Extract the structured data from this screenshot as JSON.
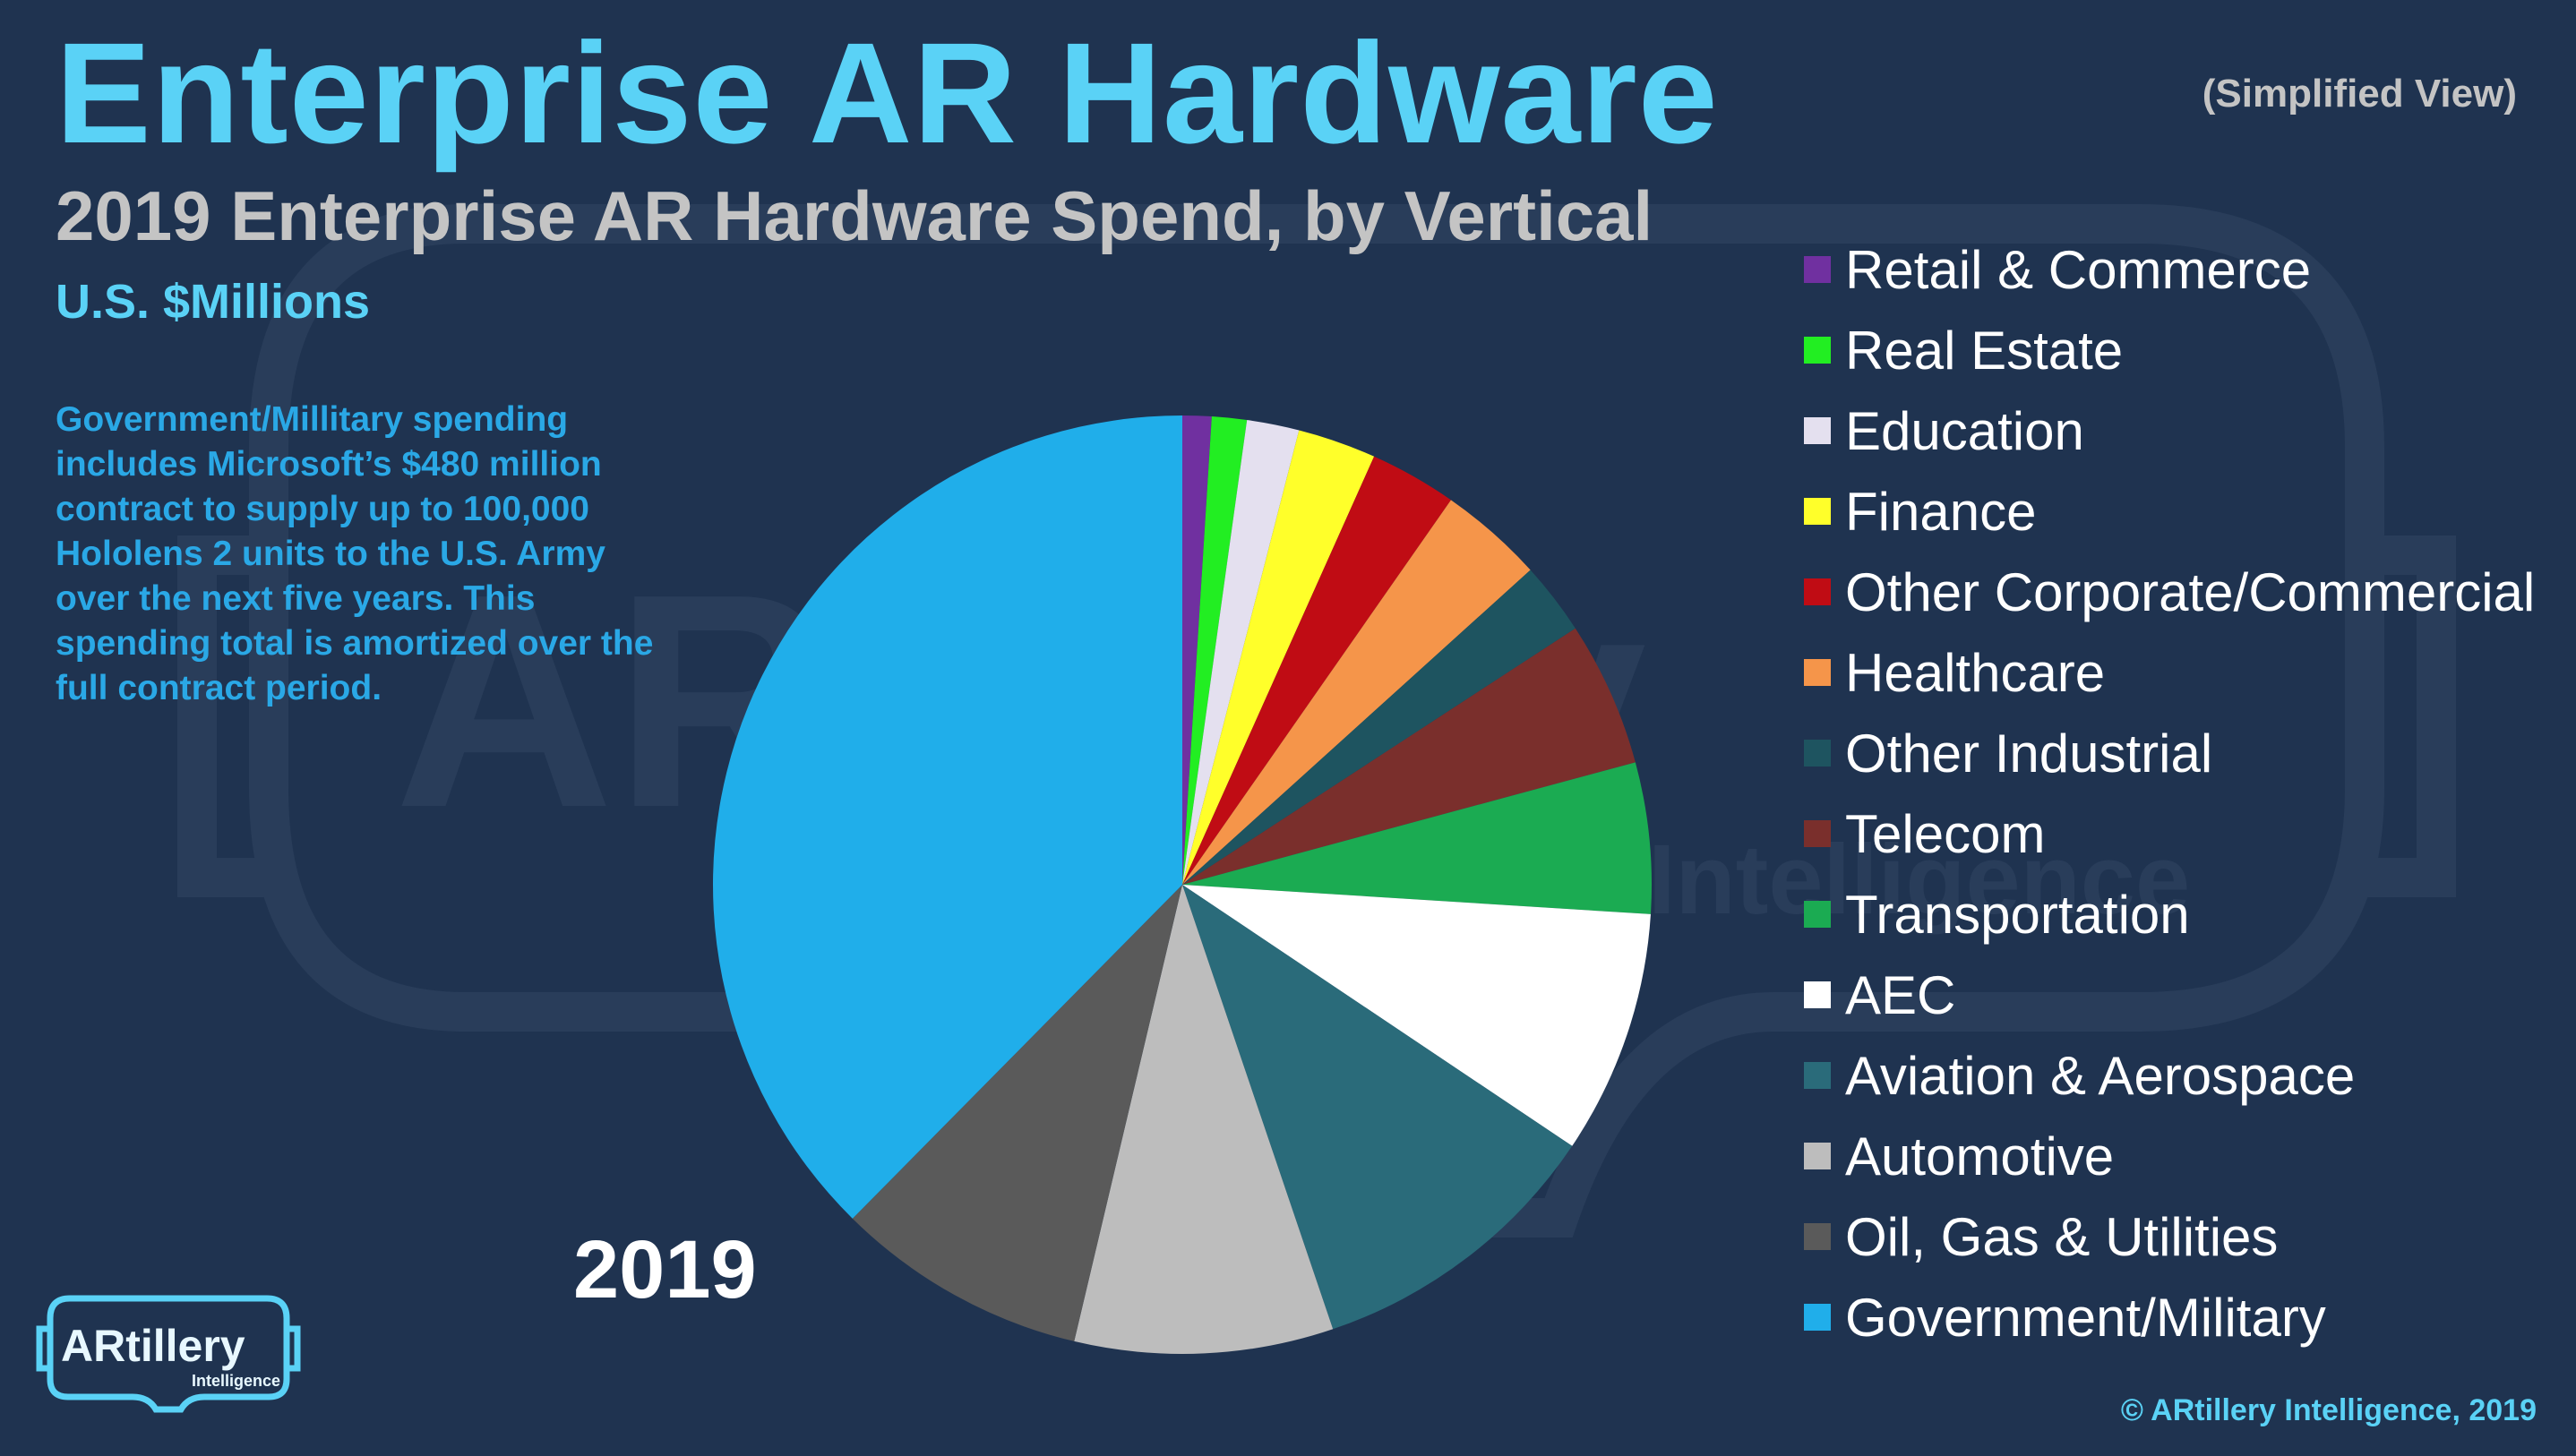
{
  "header": {
    "title": "Enterprise AR Hardware",
    "view_note": "(Simplified View)",
    "subtitle": "2019 Enterprise AR Hardware Spend, by Vertical",
    "units": "U.S. $Millions"
  },
  "note": "Government/Millitary spending includes Microsoft’s $480 million contract to supply up to 100,000 Hololens 2 units to the U.S. Army over the next five years. This spending total is amortized over the full contract period.",
  "year_label": "2019",
  "footer": {
    "logo_text": "ARtillery",
    "logo_subtext": "Intelligence",
    "watermark_text": "ARtillery",
    "watermark_subtext": "Intelligence",
    "copyright": "© ARtillery Intelligence, 2019"
  },
  "chart_data": {
    "type": "pie",
    "year": "2019",
    "unit": "U.S. $Millions",
    "start_angle": "12 o'clock, clockwise",
    "slices": [
      {
        "label": "Retail & Commerce",
        "value": 1.0,
        "color": "#7030a0"
      },
      {
        "label": "Real Estate",
        "value": 1.2,
        "color": "#22ee22"
      },
      {
        "label": "Education",
        "value": 1.8,
        "color": "#e4e0ef"
      },
      {
        "label": "Finance",
        "value": 2.7,
        "color": "#ffff2a"
      },
      {
        "label": "Other Corporate/Commercial",
        "value": 3.0,
        "color": "#c00c14"
      },
      {
        "label": "Healthcare",
        "value": 3.6,
        "color": "#f5954a"
      },
      {
        "label": "Other Industrial",
        "value": 2.5,
        "color": "#1e5460"
      },
      {
        "label": "Telecom",
        "value": 5.0,
        "color": "#7a2f2c"
      },
      {
        "label": "Transportation",
        "value": 5.2,
        "color": "#1bab52"
      },
      {
        "label": "AEC",
        "value": 8.4,
        "color": "#ffffff"
      },
      {
        "label": "Aviation & Aerospace",
        "value": 10.4,
        "color": "#2a6b7a"
      },
      {
        "label": "Automotive",
        "value": 8.9,
        "color": "#bdbdbd"
      },
      {
        "label": "Oil, Gas & Utilities",
        "value": 8.7,
        "color": "#5a5a5a"
      },
      {
        "label": "Government/Military",
        "value": 37.6,
        "color": "#20aeea"
      }
    ]
  }
}
